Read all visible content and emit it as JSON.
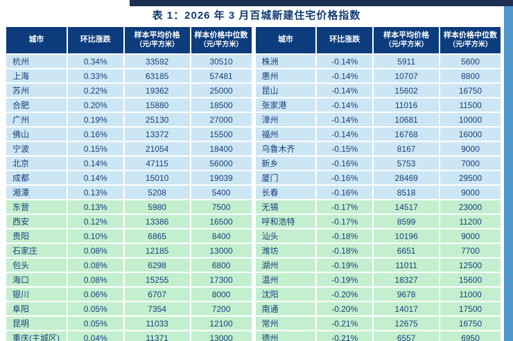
{
  "page": {
    "title": "表 1：2026 年 3 月百城新建住宅价格指数"
  },
  "colors": {
    "header_bg": "#0c3c7c",
    "row_blue": "#cde6f4",
    "row_green": "#c3efcf",
    "cell_text": "#17407b",
    "title_text": "#123a73",
    "top_bar": "#1c2e52",
    "right_edge_bar": "#4d97cb"
  },
  "columns": {
    "city": "城市",
    "change": "环比涨跌",
    "avg": "样本平均价格",
    "avg_unit": "（元/平方米）",
    "median": "样本价格中位数",
    "median_unit": "（元/平方米）"
  },
  "left_table": {
    "rows": [
      {
        "city": "杭州",
        "change": "0.34%",
        "avg": "33592",
        "median": "30510",
        "tone": "blue"
      },
      {
        "city": "上海",
        "change": "0.33%",
        "avg": "63185",
        "median": "57481",
        "tone": "blue"
      },
      {
        "city": "苏州",
        "change": "0.22%",
        "avg": "19362",
        "median": "25000",
        "tone": "blue"
      },
      {
        "city": "合肥",
        "change": "0.20%",
        "avg": "15880",
        "median": "18500",
        "tone": "blue"
      },
      {
        "city": "广州",
        "change": "0.19%",
        "avg": "25130",
        "median": "27000",
        "tone": "blue"
      },
      {
        "city": "佛山",
        "change": "0.16%",
        "avg": "13372",
        "median": "15500",
        "tone": "blue"
      },
      {
        "city": "宁波",
        "change": "0.15%",
        "avg": "21054",
        "median": "18400",
        "tone": "blue"
      },
      {
        "city": "北京",
        "change": "0.14%",
        "avg": "47115",
        "median": "56000",
        "tone": "blue"
      },
      {
        "city": "成都",
        "change": "0.14%",
        "avg": "15010",
        "median": "19039",
        "tone": "blue"
      },
      {
        "city": "湘潭",
        "change": "0.13%",
        "avg": "5208",
        "median": "5400",
        "tone": "blue"
      },
      {
        "city": "东营",
        "change": "0.13%",
        "avg": "5980",
        "median": "7500",
        "tone": "green"
      },
      {
        "city": "西安",
        "change": "0.12%",
        "avg": "13386",
        "median": "16500",
        "tone": "green"
      },
      {
        "city": "贵阳",
        "change": "0.10%",
        "avg": "6865",
        "median": "8400",
        "tone": "green"
      },
      {
        "city": "石家庄",
        "change": "0.08%",
        "avg": "12185",
        "median": "13000",
        "tone": "green"
      },
      {
        "city": "包头",
        "change": "0.08%",
        "avg": "6298",
        "median": "6800",
        "tone": "green"
      },
      {
        "city": "海口",
        "change": "0.08%",
        "avg": "15255",
        "median": "17300",
        "tone": "green"
      },
      {
        "city": "银川",
        "change": "0.06%",
        "avg": "6707",
        "median": "8000",
        "tone": "green"
      },
      {
        "city": "阜阳",
        "change": "0.05%",
        "avg": "7354",
        "median": "7200",
        "tone": "green"
      },
      {
        "city": "昆明",
        "change": "0.05%",
        "avg": "11033",
        "median": "12100",
        "tone": "green"
      },
      {
        "city": "重庆(主城区)",
        "change": "0.04%",
        "avg": "11371",
        "median": "13000",
        "tone": "green"
      }
    ]
  },
  "right_table": {
    "rows": [
      {
        "city": "株洲",
        "change": "-0.14%",
        "avg": "5911",
        "median": "5600",
        "tone": "blue"
      },
      {
        "city": "惠州",
        "change": "-0.14%",
        "avg": "10707",
        "median": "8800",
        "tone": "blue"
      },
      {
        "city": "昆山",
        "change": "-0.14%",
        "avg": "15602",
        "median": "16750",
        "tone": "blue"
      },
      {
        "city": "张家港",
        "change": "-0.14%",
        "avg": "11016",
        "median": "11500",
        "tone": "blue"
      },
      {
        "city": "漳州",
        "change": "-0.14%",
        "avg": "10681",
        "median": "10000",
        "tone": "blue"
      },
      {
        "city": "福州",
        "change": "-0.14%",
        "avg": "16768",
        "median": "16000",
        "tone": "blue"
      },
      {
        "city": "乌鲁木齐",
        "change": "-0.15%",
        "avg": "8167",
        "median": "9000",
        "tone": "blue"
      },
      {
        "city": "新乡",
        "change": "-0.16%",
        "avg": "5753",
        "median": "7000",
        "tone": "blue"
      },
      {
        "city": "厦门",
        "change": "-0.16%",
        "avg": "28469",
        "median": "29500",
        "tone": "blue"
      },
      {
        "city": "长春",
        "change": "-0.16%",
        "avg": "8518",
        "median": "9000",
        "tone": "blue"
      },
      {
        "city": "无锡",
        "change": "-0.17%",
        "avg": "14517",
        "median": "23000",
        "tone": "green"
      },
      {
        "city": "呼和浩特",
        "change": "-0.17%",
        "avg": "8599",
        "median": "11200",
        "tone": "green"
      },
      {
        "city": "汕头",
        "change": "-0.18%",
        "avg": "10196",
        "median": "9000",
        "tone": "green"
      },
      {
        "city": "潍坊",
        "change": "-0.18%",
        "avg": "6651",
        "median": "7700",
        "tone": "green"
      },
      {
        "city": "湖州",
        "change": "-0.19%",
        "avg": "11011",
        "median": "12500",
        "tone": "green"
      },
      {
        "city": "温州",
        "change": "-0.19%",
        "avg": "18327",
        "median": "15600",
        "tone": "green"
      },
      {
        "city": "沈阳",
        "change": "-0.20%",
        "avg": "9678",
        "median": "11000",
        "tone": "green"
      },
      {
        "city": "南通",
        "change": "-0.20%",
        "avg": "14017",
        "median": "17500",
        "tone": "green"
      },
      {
        "city": "常州",
        "change": "-0.21%",
        "avg": "12675",
        "median": "16750",
        "tone": "green"
      },
      {
        "city": "德州",
        "change": "-0.21%",
        "avg": "6557",
        "median": "6950",
        "tone": "green"
      }
    ]
  }
}
